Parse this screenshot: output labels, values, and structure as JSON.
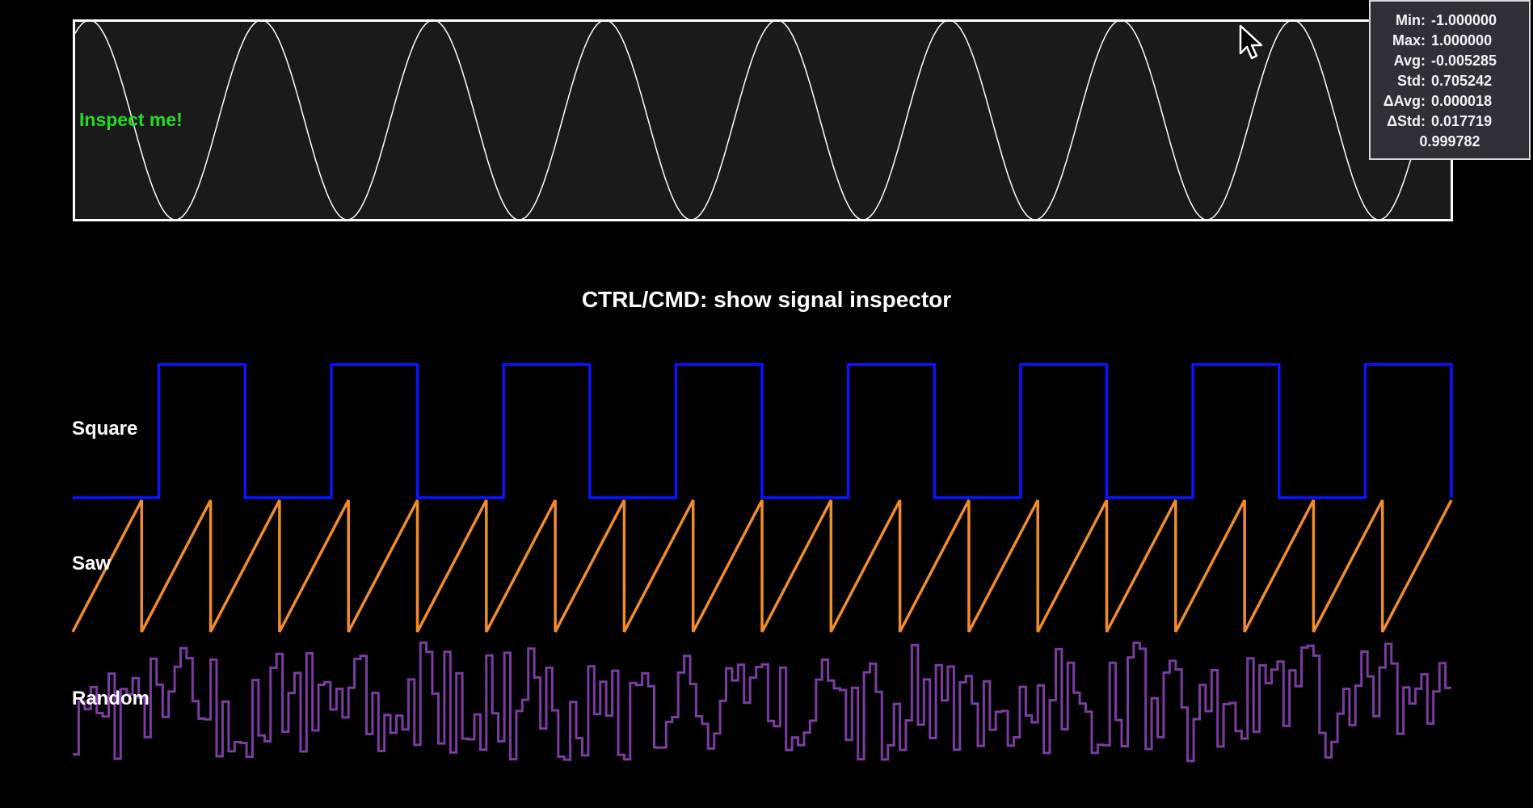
{
  "scope": {
    "label": "Inspect me!",
    "waveform": "sine",
    "cycles": 8,
    "label_color": "#22dd22"
  },
  "inspector": {
    "rows": [
      {
        "key": "Min:",
        "value": "-1.000000"
      },
      {
        "key": "Max:",
        "value": "1.000000"
      },
      {
        "key": "Avg:",
        "value": "-0.005285"
      },
      {
        "key": "Std:",
        "value": "0.705242"
      },
      {
        "key": "ΔAvg:",
        "value": "0.000018"
      },
      {
        "key": "ΔStd:",
        "value": "0.017719"
      }
    ],
    "last_value": "0.999782"
  },
  "hint": "CTRL/CMD: show signal inspector",
  "signals": [
    {
      "label": "Square",
      "type": "square",
      "color": "#0a14ff",
      "cycles": 8
    },
    {
      "label": "Saw",
      "type": "saw",
      "color": "#f08c2c",
      "cycles": 20
    },
    {
      "label": "Random",
      "type": "random",
      "color": "#7a3ca0"
    }
  ],
  "cursor_icon": "mouse-pointer-icon"
}
